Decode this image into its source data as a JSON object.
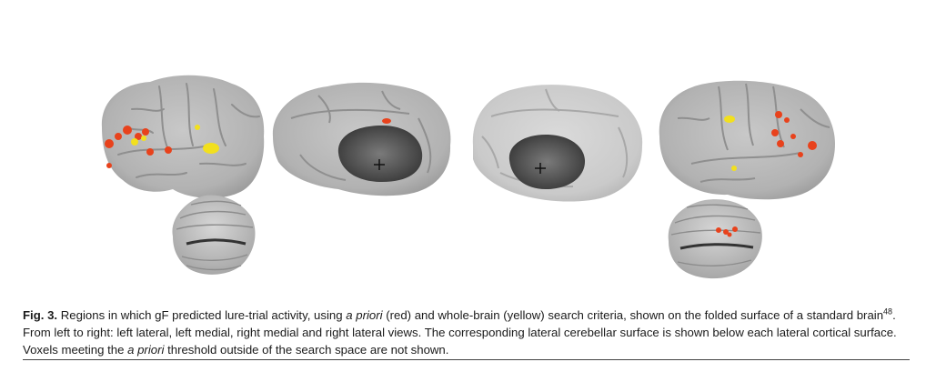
{
  "figure": {
    "panels": [
      "left lateral",
      "left medial",
      "right medial",
      "right lateral"
    ],
    "colors": {
      "cortex": "#b9b9b9",
      "cortex_light": "#cfcfcf",
      "sulcus": "#8a8a8a",
      "medial_wall": "#5a5a5a",
      "a_priori": "#e8421c",
      "whole_brain": "#f2e01e"
    }
  },
  "caption": {
    "label": "Fig. 3.",
    "t1": " Regions in which gF predicted lure-trial activity, using ",
    "em1": "a priori",
    "t2": " (red) and whole-brain (yellow) search criteria, shown on the folded surface of a standard brain",
    "ref": "48",
    "t3": ". From left to right: left lateral, left medial, right medial and right lateral views. The corresponding lateral cerebellar surface is shown below each lateral cortical surface. Voxels meeting the ",
    "em2": "a priori",
    "t4": " threshold outside of the search space are not shown."
  }
}
